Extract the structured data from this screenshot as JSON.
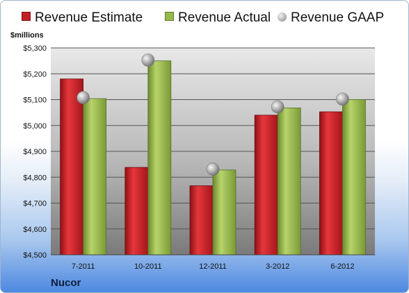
{
  "chart_data": {
    "type": "bar",
    "unit_label": "$millions",
    "footer": "Nucor",
    "categories": [
      "7-2011",
      "10-2011",
      "12-2011",
      "3-2012",
      "6-2012"
    ],
    "series": [
      {
        "name": "Revenue Estimate",
        "kind": "bar",
        "color": "#c41e25",
        "values": [
          5180,
          4838,
          4767,
          5040,
          5053
        ]
      },
      {
        "name": "Revenue Actual",
        "kind": "bar",
        "color": "#98b84e",
        "values": [
          5104,
          5250,
          4828,
          5068,
          5100
        ]
      },
      {
        "name": "Revenue GAAP",
        "kind": "marker",
        "color": "#a5a5a5",
        "values": [
          5108,
          5253,
          4831,
          5072,
          5102
        ]
      }
    ],
    "ylim": [
      4500,
      5300
    ],
    "yticks": [
      "$4,500",
      "$4,600",
      "$4,700",
      "$4,800",
      "$4,900",
      "$5,000",
      "$5,100",
      "$5,200",
      "$5,300"
    ],
    "grid": true,
    "legend_position": "top"
  }
}
